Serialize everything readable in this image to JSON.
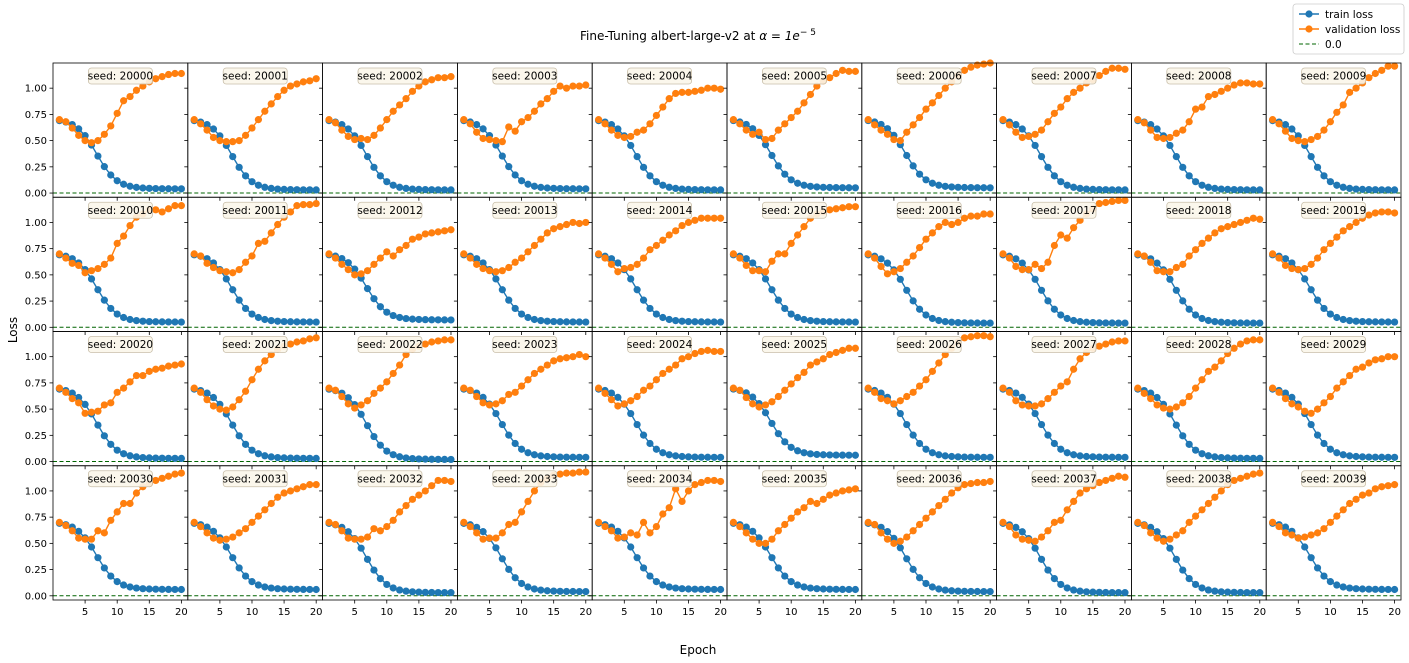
{
  "chart_data": {
    "type": "line",
    "title_prefix": "Fine-Tuning albert-large-v2 at ",
    "title_math": "α = 1e",
    "title_sup": "− 5",
    "xlabel": "Epoch",
    "ylabel": "Loss",
    "xlim": [
      0,
      21
    ],
    "ylim": [
      -0.04,
      1.24
    ],
    "xticks": [
      5,
      10,
      15,
      20
    ],
    "yticks": [
      "0.00",
      "0.25",
      "0.50",
      "0.75",
      "1.00"
    ],
    "ytick_values": [
      0,
      0.25,
      0.5,
      0.75,
      1.0
    ],
    "legend_position": "top-right",
    "legend": [
      {
        "label": "train loss",
        "color": "#1f77b4",
        "style": "line-marker"
      },
      {
        "label": "validation loss",
        "color": "#ff7f0e",
        "style": "line-marker"
      },
      {
        "label": "0.0",
        "color": "#006400",
        "style": "dashed"
      }
    ],
    "colors": {
      "train": "#1f77b4",
      "validation": "#ff7f0e",
      "baseline": "#006400"
    },
    "epochs": [
      1,
      2,
      3,
      4,
      5,
      6,
      7,
      8,
      9,
      10,
      11,
      12,
      13,
      14,
      15,
      16,
      17,
      18,
      19,
      20
    ],
    "panels": [
      {
        "seed": "seed: 20000",
        "final_train": 0.04,
        "val": [
          0.7,
          0.68,
          0.62,
          0.55,
          0.5,
          0.48,
          0.5,
          0.56,
          0.64,
          0.76,
          0.88,
          0.92,
          0.98,
          1.02,
          1.06,
          1.09,
          1.11,
          1.13,
          1.14,
          1.14
        ]
      },
      {
        "seed": "seed: 20001",
        "final_train": 0.03,
        "val": [
          0.7,
          0.66,
          0.6,
          0.53,
          0.5,
          0.49,
          0.49,
          0.5,
          0.55,
          0.62,
          0.7,
          0.78,
          0.85,
          0.92,
          0.98,
          1.02,
          1.04,
          1.06,
          1.07,
          1.09
        ]
      },
      {
        "seed": "seed: 20002",
        "final_train": 0.03,
        "val": [
          0.7,
          0.67,
          0.6,
          0.54,
          0.51,
          0.52,
          0.51,
          0.55,
          0.62,
          0.7,
          0.78,
          0.84,
          0.9,
          0.97,
          1.02,
          1.06,
          1.08,
          1.1,
          1.1,
          1.11
        ]
      },
      {
        "seed": "seed: 20003",
        "final_train": 0.04,
        "val": [
          0.7,
          0.66,
          0.58,
          0.52,
          0.51,
          0.5,
          0.49,
          0.63,
          0.59,
          0.68,
          0.72,
          0.78,
          0.85,
          0.9,
          0.97,
          1.02,
          1.0,
          1.02,
          1.02,
          1.03
        ]
      },
      {
        "seed": "seed: 20004",
        "final_train": 0.03,
        "val": [
          0.7,
          0.66,
          0.6,
          0.55,
          0.53,
          0.54,
          0.58,
          0.6,
          0.66,
          0.74,
          0.82,
          0.9,
          0.95,
          0.96,
          0.96,
          0.97,
          0.98,
          1.0,
          1.0,
          0.99
        ]
      },
      {
        "seed": "seed: 20005",
        "final_train": 0.05,
        "val": [
          0.7,
          0.66,
          0.6,
          0.56,
          0.58,
          0.51,
          0.52,
          0.6,
          0.66,
          0.72,
          0.78,
          0.86,
          0.94,
          1.02,
          1.07,
          1.1,
          1.14,
          1.17,
          1.16,
          1.16
        ]
      },
      {
        "seed": "seed: 20006",
        "final_train": 0.05,
        "val": [
          0.7,
          0.65,
          0.6,
          0.56,
          0.51,
          0.5,
          0.58,
          0.65,
          0.72,
          0.8,
          0.86,
          0.93,
          1.0,
          1.06,
          1.12,
          1.17,
          1.2,
          1.22,
          1.23,
          1.24
        ]
      },
      {
        "seed": "seed: 20007",
        "final_train": 0.03,
        "val": [
          0.7,
          0.65,
          0.58,
          0.53,
          0.54,
          0.56,
          0.6,
          0.68,
          0.76,
          0.82,
          0.9,
          0.96,
          1.0,
          1.05,
          1.08,
          1.12,
          1.16,
          1.19,
          1.19,
          1.18
        ]
      },
      {
        "seed": "seed: 20008",
        "final_train": 0.03,
        "val": [
          0.7,
          0.67,
          0.6,
          0.53,
          0.52,
          0.53,
          0.57,
          0.6,
          0.68,
          0.8,
          0.82,
          0.92,
          0.94,
          0.97,
          1.0,
          1.03,
          1.05,
          1.05,
          1.04,
          1.04
        ]
      },
      {
        "seed": "seed: 20009",
        "final_train": 0.03,
        "val": [
          0.7,
          0.66,
          0.59,
          0.52,
          0.5,
          0.49,
          0.51,
          0.54,
          0.6,
          0.68,
          0.77,
          0.84,
          0.96,
          1.0,
          1.05,
          1.1,
          1.14,
          1.17,
          1.21,
          1.21
        ]
      },
      {
        "seed": "seed: 20010",
        "final_train": 0.05,
        "val": [
          0.7,
          0.66,
          0.61,
          0.59,
          0.52,
          0.54,
          0.56,
          0.6,
          0.66,
          0.8,
          0.87,
          0.97,
          1.05,
          1.08,
          1.12,
          1.12,
          1.1,
          1.13,
          1.16,
          1.16
        ]
      },
      {
        "seed": "seed: 20011",
        "final_train": 0.05,
        "val": [
          0.7,
          0.68,
          0.61,
          0.57,
          0.54,
          0.53,
          0.52,
          0.55,
          0.62,
          0.68,
          0.8,
          0.82,
          0.9,
          0.98,
          1.05,
          1.1,
          1.16,
          1.17,
          1.17,
          1.18
        ]
      },
      {
        "seed": "seed: 20012",
        "final_train": 0.07,
        "val": [
          0.7,
          0.66,
          0.6,
          0.55,
          0.5,
          0.51,
          0.54,
          0.6,
          0.66,
          0.72,
          0.68,
          0.74,
          0.78,
          0.84,
          0.86,
          0.89,
          0.9,
          0.91,
          0.92,
          0.93
        ]
      },
      {
        "seed": "seed: 20013",
        "final_train": 0.05,
        "val": [
          0.7,
          0.66,
          0.6,
          0.56,
          0.54,
          0.53,
          0.54,
          0.57,
          0.62,
          0.66,
          0.72,
          0.78,
          0.84,
          0.9,
          0.94,
          0.96,
          0.98,
          1.0,
          0.99,
          1.0
        ]
      },
      {
        "seed": "seed: 20014",
        "final_train": 0.05,
        "val": [
          0.7,
          0.66,
          0.6,
          0.53,
          0.56,
          0.57,
          0.6,
          0.66,
          0.74,
          0.78,
          0.83,
          0.88,
          0.92,
          0.97,
          1.0,
          1.02,
          1.04,
          1.04,
          1.04,
          1.04
        ]
      },
      {
        "seed": "seed: 20015",
        "final_train": 0.05,
        "val": [
          0.7,
          0.66,
          0.59,
          0.54,
          0.54,
          0.53,
          0.63,
          0.7,
          0.7,
          0.8,
          0.88,
          0.96,
          1.04,
          1.08,
          1.1,
          1.12,
          1.13,
          1.14,
          1.15,
          1.15
        ]
      },
      {
        "seed": "seed: 20016",
        "final_train": 0.04,
        "val": [
          0.7,
          0.66,
          0.58,
          0.51,
          0.53,
          0.56,
          0.62,
          0.68,
          0.76,
          0.84,
          0.9,
          0.96,
          1.0,
          0.98,
          1.0,
          1.04,
          1.06,
          1.06,
          1.08,
          1.08
        ]
      },
      {
        "seed": "seed: 20017",
        "final_train": 0.04,
        "val": [
          0.7,
          0.66,
          0.58,
          0.55,
          0.55,
          0.6,
          0.56,
          0.62,
          0.78,
          0.88,
          0.85,
          0.95,
          1.02,
          1.08,
          1.13,
          1.18,
          1.19,
          1.2,
          1.21,
          1.21
        ]
      },
      {
        "seed": "seed: 20018",
        "final_train": 0.04,
        "val": [
          0.7,
          0.68,
          0.62,
          0.54,
          0.53,
          0.53,
          0.57,
          0.6,
          0.68,
          0.74,
          0.8,
          0.85,
          0.9,
          0.94,
          0.96,
          0.98,
          1.0,
          1.02,
          1.04,
          1.03
        ]
      },
      {
        "seed": "seed: 20019",
        "final_train": 0.05,
        "val": [
          0.7,
          0.66,
          0.59,
          0.56,
          0.55,
          0.56,
          0.6,
          0.66,
          0.74,
          0.8,
          0.86,
          0.92,
          0.96,
          1.0,
          1.04,
          1.07,
          1.09,
          1.1,
          1.1,
          1.09
        ]
      },
      {
        "seed": "seed: 20020",
        "final_train": 0.03,
        "val": [
          0.7,
          0.66,
          0.6,
          0.56,
          0.46,
          0.47,
          0.48,
          0.54,
          0.56,
          0.66,
          0.7,
          0.76,
          0.82,
          0.82,
          0.86,
          0.88,
          0.89,
          0.91,
          0.92,
          0.93
        ]
      },
      {
        "seed": "seed: 20021",
        "final_train": 0.03,
        "val": [
          0.7,
          0.66,
          0.59,
          0.53,
          0.5,
          0.49,
          0.52,
          0.59,
          0.67,
          0.78,
          0.88,
          0.96,
          1.02,
          1.07,
          1.1,
          1.12,
          1.14,
          1.15,
          1.17,
          1.18
        ]
      },
      {
        "seed": "seed: 20022",
        "final_train": 0.02,
        "val": [
          0.7,
          0.68,
          0.62,
          0.55,
          0.51,
          0.54,
          0.58,
          0.65,
          0.7,
          0.76,
          0.84,
          0.92,
          1.02,
          1.07,
          1.1,
          1.12,
          1.14,
          1.15,
          1.16,
          1.16
        ]
      },
      {
        "seed": "seed: 20023",
        "final_train": 0.04,
        "val": [
          0.7,
          0.68,
          0.62,
          0.56,
          0.54,
          0.55,
          0.58,
          0.64,
          0.66,
          0.72,
          0.78,
          0.84,
          0.88,
          0.92,
          0.96,
          0.98,
          0.99,
          1.0,
          1.02,
          1.0
        ]
      },
      {
        "seed": "seed: 20024",
        "final_train": 0.04,
        "val": [
          0.7,
          0.65,
          0.59,
          0.53,
          0.55,
          0.58,
          0.62,
          0.68,
          0.72,
          0.78,
          0.84,
          0.88,
          0.92,
          0.98,
          1.0,
          1.03,
          1.05,
          1.06,
          1.05,
          1.05
        ]
      },
      {
        "seed": "seed: 20025",
        "final_train": 0.06,
        "val": [
          0.7,
          0.68,
          0.61,
          0.55,
          0.52,
          0.54,
          0.57,
          0.62,
          0.68,
          0.74,
          0.8,
          0.85,
          0.92,
          0.95,
          0.98,
          1.02,
          1.04,
          1.06,
          1.08,
          1.08
        ]
      },
      {
        "seed": "seed: 20026",
        "final_train": 0.04,
        "val": [
          0.7,
          0.66,
          0.6,
          0.58,
          0.55,
          0.58,
          0.62,
          0.66,
          0.72,
          0.78,
          0.86,
          0.94,
          1.02,
          1.08,
          1.14,
          1.18,
          1.19,
          1.2,
          1.2,
          1.19
        ]
      },
      {
        "seed": "seed: 20027",
        "final_train": 0.04,
        "val": [
          0.7,
          0.66,
          0.58,
          0.54,
          0.53,
          0.53,
          0.55,
          0.6,
          0.66,
          0.72,
          0.76,
          0.88,
          0.98,
          1.04,
          1.08,
          1.1,
          1.12,
          1.14,
          1.15,
          1.15
        ]
      },
      {
        "seed": "seed: 20028",
        "final_train": 0.03,
        "val": [
          0.7,
          0.65,
          0.6,
          0.54,
          0.51,
          0.5,
          0.52,
          0.56,
          0.62,
          0.7,
          0.78,
          0.86,
          0.9,
          0.96,
          1.03,
          1.08,
          1.12,
          1.15,
          1.16,
          1.16
        ]
      },
      {
        "seed": "seed: 20029",
        "final_train": 0.04,
        "val": [
          0.7,
          0.66,
          0.6,
          0.55,
          0.52,
          0.48,
          0.46,
          0.5,
          0.56,
          0.62,
          0.7,
          0.76,
          0.82,
          0.88,
          0.9,
          0.94,
          0.97,
          0.98,
          1.0,
          1.0
        ]
      },
      {
        "seed": "seed: 20030",
        "final_train": 0.06,
        "val": [
          0.7,
          0.67,
          0.62,
          0.55,
          0.54,
          0.54,
          0.62,
          0.6,
          0.72,
          0.8,
          0.88,
          0.88,
          0.98,
          1.04,
          1.07,
          1.1,
          1.12,
          1.14,
          1.16,
          1.17
        ]
      },
      {
        "seed": "seed: 20031",
        "final_train": 0.06,
        "val": [
          0.7,
          0.66,
          0.6,
          0.55,
          0.53,
          0.54,
          0.56,
          0.6,
          0.64,
          0.7,
          0.76,
          0.82,
          0.88,
          0.94,
          0.98,
          1.0,
          1.02,
          1.04,
          1.06,
          1.06
        ]
      },
      {
        "seed": "seed: 20032",
        "final_train": 0.03,
        "val": [
          0.7,
          0.68,
          0.62,
          0.55,
          0.54,
          0.54,
          0.56,
          0.64,
          0.62,
          0.66,
          0.72,
          0.8,
          0.86,
          0.92,
          0.96,
          1.0,
          1.05,
          1.1,
          1.1,
          1.09
        ]
      },
      {
        "seed": "seed: 20033",
        "final_train": 0.04,
        "val": [
          0.7,
          0.66,
          0.6,
          0.54,
          0.55,
          0.55,
          0.6,
          0.68,
          0.7,
          0.8,
          0.9,
          1.0,
          1.08,
          1.12,
          1.15,
          1.16,
          1.17,
          1.17,
          1.18,
          1.18
        ]
      },
      {
        "seed": "seed: 20034",
        "final_train": 0.06,
        "val": [
          0.7,
          0.66,
          0.62,
          0.55,
          0.56,
          0.6,
          0.58,
          0.7,
          0.6,
          0.66,
          0.78,
          0.84,
          1.02,
          0.9,
          1.0,
          1.06,
          1.08,
          1.1,
          1.1,
          1.09
        ]
      },
      {
        "seed": "seed: 20035",
        "final_train": 0.06,
        "val": [
          0.7,
          0.66,
          0.6,
          0.54,
          0.5,
          0.5,
          0.54,
          0.62,
          0.68,
          0.74,
          0.8,
          0.84,
          0.9,
          0.88,
          0.92,
          0.96,
          0.98,
          1.0,
          1.01,
          1.02
        ]
      },
      {
        "seed": "seed: 20036",
        "final_train": 0.04,
        "val": [
          0.7,
          0.68,
          0.6,
          0.54,
          0.5,
          0.52,
          0.56,
          0.62,
          0.68,
          0.74,
          0.8,
          0.86,
          0.92,
          0.98,
          1.03,
          1.06,
          1.07,
          1.08,
          1.08,
          1.09
        ]
      },
      {
        "seed": "seed: 20037",
        "final_train": 0.03,
        "val": [
          0.7,
          0.66,
          0.58,
          0.54,
          0.53,
          0.52,
          0.56,
          0.62,
          0.7,
          0.72,
          0.82,
          0.9,
          0.98,
          1.02,
          1.05,
          1.08,
          1.1,
          1.12,
          1.14,
          1.13
        ]
      },
      {
        "seed": "seed: 20038",
        "final_train": 0.03,
        "val": [
          0.7,
          0.67,
          0.6,
          0.55,
          0.52,
          0.54,
          0.58,
          0.62,
          0.7,
          0.76,
          0.82,
          0.88,
          0.94,
          1.0,
          1.06,
          1.1,
          1.12,
          1.14,
          1.16,
          1.17
        ]
      },
      {
        "seed": "seed: 20039",
        "final_train": 0.06,
        "val": [
          0.7,
          0.66,
          0.6,
          0.58,
          0.55,
          0.56,
          0.58,
          0.6,
          0.64,
          0.7,
          0.76,
          0.82,
          0.88,
          0.92,
          0.96,
          0.98,
          1.02,
          1.04,
          1.05,
          1.06
        ]
      }
    ]
  }
}
